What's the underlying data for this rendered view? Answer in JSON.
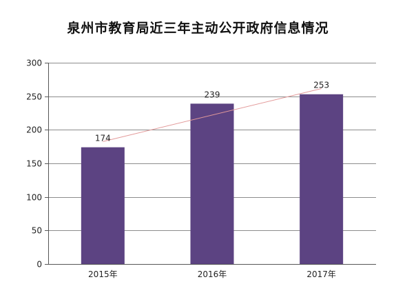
{
  "chart_data": {
    "type": "bar",
    "title": "泉州市教育局近三年主动公开政府信息情况",
    "categories": [
      "2015年",
      "2016年",
      "2017年"
    ],
    "values": [
      174,
      239,
      253
    ],
    "data_labels": [
      "174",
      "239",
      "253"
    ],
    "ylim": [
      0,
      300
    ],
    "yticks": [
      0,
      50,
      100,
      150,
      200,
      250,
      300
    ],
    "ytick_labels": [
      "0",
      "50",
      "100",
      "150",
      "200",
      "250",
      "300"
    ],
    "xlabel": "",
    "ylabel": "",
    "grid": true,
    "legend": "none",
    "trendline": "linear",
    "colors": {
      "bar": "#5c4382",
      "grid": "#8c8c8c",
      "trendline": "#e39a9a",
      "axis": "#555555"
    }
  }
}
